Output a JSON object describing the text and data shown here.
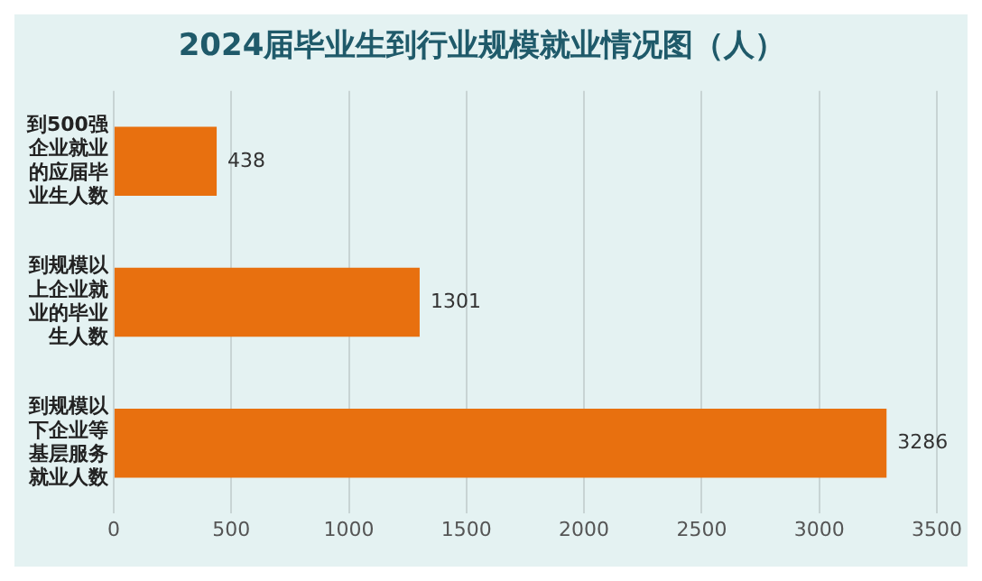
{
  "chart_data": {
    "type": "bar",
    "title": "2024届毕业生到行业规模就业情况图（人）",
    "orientation": "horizontal",
    "categories": [
      "到500强企业就业的应届毕业生人数",
      "到规模以上企业就业的毕业生人数",
      "到规模以下企业等基层服务就业人数"
    ],
    "values": [
      438,
      1301,
      3286
    ],
    "color": "#e8700f",
    "xlim": [
      0,
      3500
    ],
    "xticks": [
      0,
      500,
      1000,
      1500,
      2000,
      2500,
      3000,
      3500
    ],
    "grid": "x",
    "data_labels": true
  }
}
